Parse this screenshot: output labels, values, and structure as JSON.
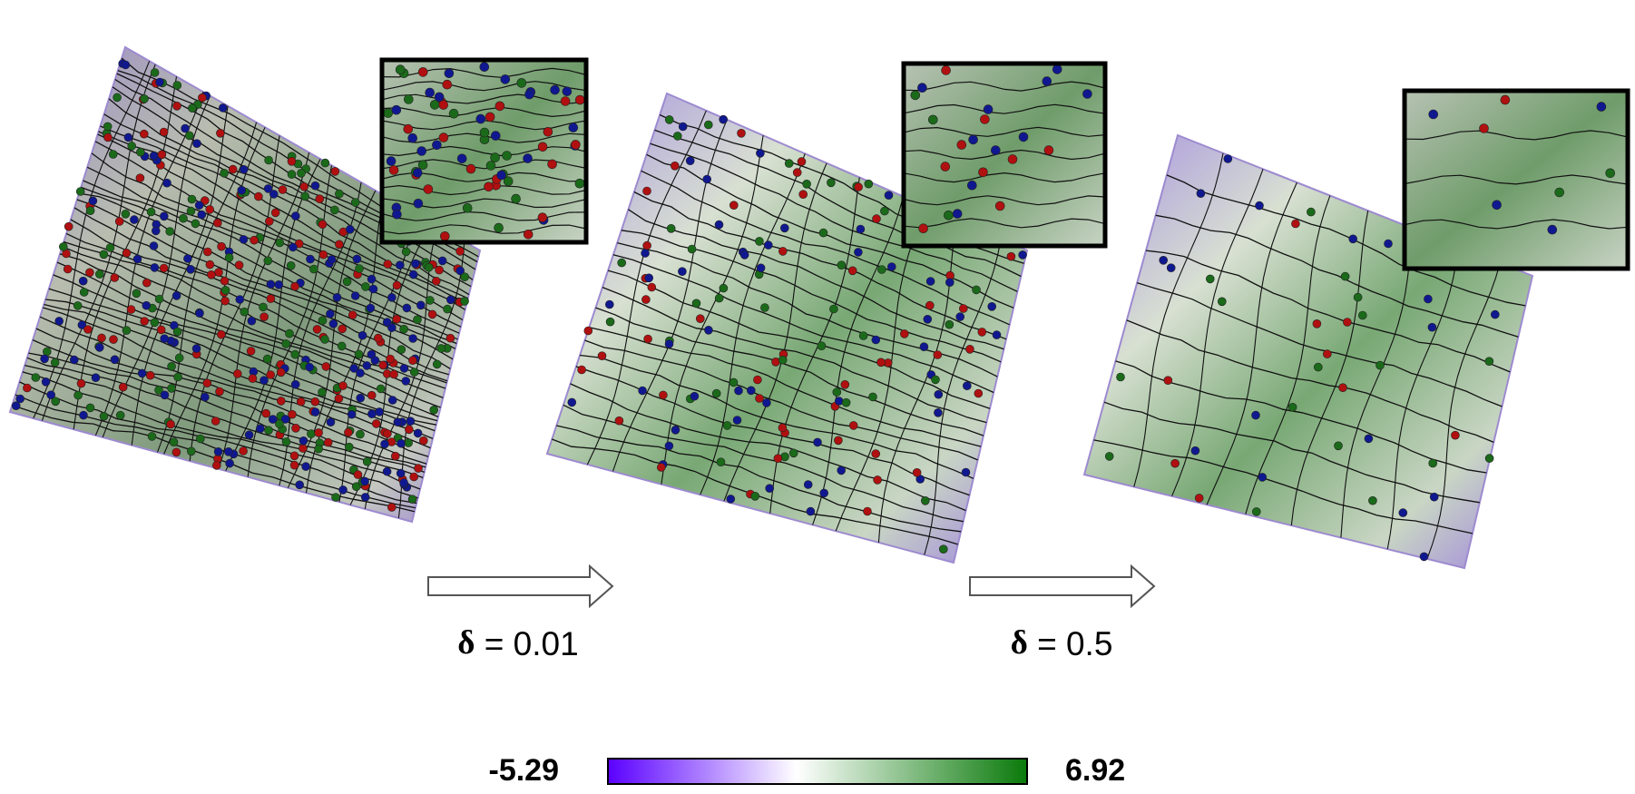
{
  "steps": [
    {
      "symbol": "δ",
      "text": "= 0.01"
    },
    {
      "symbol": "δ",
      "text": "= 0.5"
    }
  ],
  "colorbar": {
    "min": -5.29,
    "max": 6.92
  }
}
